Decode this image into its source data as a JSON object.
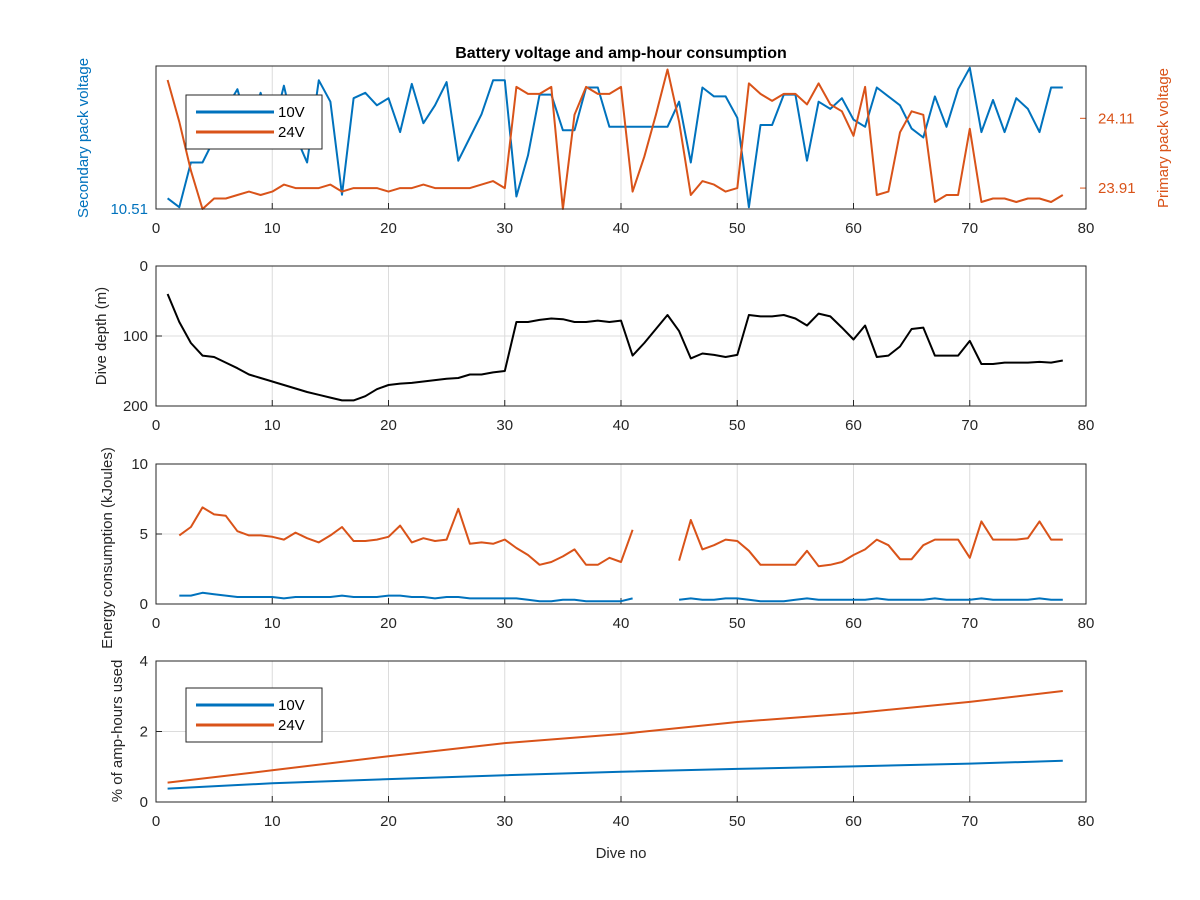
{
  "colors": {
    "s10v": "#0072BD",
    "s24v": "#D95319",
    "depth": "#000000",
    "grid": "#dcdcdc",
    "axis": "#262626"
  },
  "chart_data": [
    {
      "type": "line",
      "title": "Battery voltage and amp-hour consumption",
      "xlabel": "",
      "xlim": [
        0,
        80
      ],
      "xticks": [
        "0",
        "10",
        "20",
        "30",
        "40",
        "50",
        "60",
        "70",
        "80"
      ],
      "ylabel_left": "Secondary pack voltage",
      "ylabel_right": "Primary pack voltage",
      "ylim_left": [
        10.51,
        10.59
      ],
      "ylim_right": [
        23.85,
        24.26
      ],
      "yticks_left": [
        "10.51"
      ],
      "yticks_right": [
        "24.11",
        "23.91"
      ],
      "legend": {
        "position": "top-left",
        "entries": [
          "10V",
          "24V"
        ]
      },
      "series": [
        {
          "name": "10V",
          "axis": "left",
          "x": [
            1,
            2,
            3,
            4,
            5,
            6,
            7,
            8,
            9,
            10,
            11,
            12,
            13,
            14,
            15,
            16,
            17,
            18,
            19,
            20,
            21,
            22,
            23,
            24,
            25,
            26,
            27,
            28,
            29,
            30,
            31,
            32,
            33,
            34,
            35,
            36,
            37,
            38,
            39,
            40,
            41,
            42,
            43,
            44,
            45,
            46,
            47,
            48,
            49,
            50,
            51,
            52,
            53,
            54,
            55,
            56,
            57,
            58,
            59,
            60,
            61,
            62,
            63,
            64,
            65,
            66,
            67,
            68,
            69,
            70,
            71,
            72,
            73,
            74,
            75,
            76,
            77,
            78
          ],
          "y": [
            10.516,
            10.511,
            10.536,
            10.536,
            10.549,
            10.566,
            10.577,
            10.554,
            10.575,
            10.553,
            10.579,
            10.551,
            10.536,
            10.582,
            10.57,
            10.518,
            10.572,
            10.575,
            10.568,
            10.572,
            10.553,
            10.58,
            10.558,
            10.568,
            10.581,
            10.537,
            10.55,
            10.563,
            10.582,
            10.582,
            10.517,
            10.54,
            10.574,
            10.574,
            10.554,
            10.554,
            10.578,
            10.578,
            10.556,
            10.556,
            10.556,
            10.556,
            10.556,
            10.556,
            10.57,
            10.536,
            10.578,
            10.573,
            10.573,
            10.561,
            10.511,
            10.557,
            10.557,
            10.574,
            10.574,
            10.537,
            10.57,
            10.566,
            10.572,
            10.56,
            10.556,
            10.578,
            10.573,
            10.568,
            10.555,
            10.55,
            10.573,
            10.556,
            10.577,
            10.589,
            10.553,
            10.571,
            10.553,
            10.572,
            10.566,
            10.553,
            10.578,
            10.578
          ]
        },
        {
          "name": "24V",
          "axis": "right",
          "x": [
            1,
            2,
            3,
            4,
            5,
            6,
            7,
            8,
            9,
            10,
            11,
            12,
            13,
            14,
            15,
            16,
            17,
            18,
            19,
            20,
            21,
            22,
            23,
            24,
            25,
            26,
            27,
            28,
            29,
            30,
            31,
            32,
            33,
            34,
            35,
            36,
            37,
            38,
            39,
            40,
            41,
            42,
            43,
            44,
            45,
            46,
            47,
            48,
            49,
            50,
            51,
            52,
            53,
            54,
            55,
            56,
            57,
            58,
            59,
            60,
            61,
            62,
            63,
            64,
            65,
            66,
            67,
            68,
            69,
            70,
            71,
            72,
            73,
            74,
            75,
            76,
            77,
            78
          ],
          "y": [
            24.22,
            24.1,
            23.96,
            23.85,
            23.88,
            23.88,
            23.89,
            23.9,
            23.89,
            23.9,
            23.92,
            23.91,
            23.91,
            23.91,
            23.92,
            23.9,
            23.91,
            23.91,
            23.91,
            23.9,
            23.91,
            23.91,
            23.92,
            23.91,
            23.91,
            23.91,
            23.91,
            23.92,
            23.93,
            23.91,
            24.2,
            24.18,
            24.18,
            24.2,
            23.85,
            24.12,
            24.2,
            24.18,
            24.18,
            24.2,
            23.9,
            24.0,
            24.12,
            24.25,
            24.1,
            23.89,
            23.93,
            23.92,
            23.9,
            23.91,
            24.21,
            24.18,
            24.16,
            24.18,
            24.18,
            24.15,
            24.21,
            24.15,
            24.13,
            24.06,
            24.2,
            23.89,
            23.9,
            24.07,
            24.13,
            24.12,
            23.87,
            23.89,
            23.89,
            24.08,
            23.87,
            23.88,
            23.88,
            23.87,
            23.88,
            23.88,
            23.87,
            23.89
          ]
        }
      ]
    },
    {
      "type": "line",
      "xlabel": "",
      "ylabel": "Dive depth (m)",
      "xlim": [
        0,
        80
      ],
      "ylim": [
        200,
        0
      ],
      "y_reversed": true,
      "xticks": [
        "0",
        "10",
        "20",
        "30",
        "40",
        "50",
        "60",
        "70",
        "80"
      ],
      "yticks": [
        "0",
        "100",
        "200"
      ],
      "series": [
        {
          "x": [
            1,
            2,
            3,
            4,
            5,
            6,
            7,
            8,
            9,
            10,
            11,
            12,
            13,
            14,
            15,
            16,
            17,
            18,
            19,
            20,
            21,
            22,
            23,
            24,
            25,
            26,
            27,
            28,
            29,
            30,
            31,
            32,
            33,
            34,
            35,
            36,
            37,
            38,
            39,
            40,
            41,
            42,
            43,
            44,
            45,
            46,
            47,
            48,
            49,
            50,
            51,
            52,
            53,
            54,
            55,
            56,
            57,
            58,
            59,
            60,
            61,
            62,
            63,
            64,
            65,
            66,
            67,
            68,
            69,
            70,
            71,
            72,
            73,
            74,
            75,
            76,
            77,
            78
          ],
          "y": [
            40,
            80,
            110,
            128,
            130,
            138,
            146,
            155,
            160,
            165,
            170,
            175,
            180,
            184,
            188,
            192,
            192,
            186,
            176,
            170,
            168,
            167,
            165,
            163,
            161,
            160,
            155,
            155,
            152,
            150,
            80,
            80,
            77,
            75,
            76,
            80,
            80,
            78,
            80,
            78,
            128,
            110,
            90,
            70,
            93,
            132,
            125,
            127,
            130,
            127,
            70,
            72,
            72,
            70,
            75,
            85,
            68,
            72,
            88,
            105,
            85,
            130,
            128,
            115,
            90,
            88,
            128,
            128,
            128,
            107,
            140,
            140,
            138,
            138,
            138,
            137,
            138,
            135
          ]
        }
      ]
    },
    {
      "type": "line",
      "xlabel": "",
      "ylabel": "Energy consumption (kJoules)",
      "xlim": [
        0,
        80
      ],
      "ylim": [
        0,
        10
      ],
      "xticks": [
        "0",
        "10",
        "20",
        "30",
        "40",
        "50",
        "60",
        "70",
        "80"
      ],
      "yticks": [
        "0",
        "5",
        "10"
      ],
      "series": [
        {
          "name": "24V",
          "x": [
            2,
            3,
            4,
            5,
            6,
            7,
            8,
            9,
            10,
            11,
            12,
            13,
            14,
            15,
            16,
            17,
            18,
            19,
            20,
            21,
            22,
            23,
            24,
            25,
            26,
            27,
            28,
            29,
            30,
            31,
            32,
            33,
            34,
            35,
            36,
            37,
            38,
            39,
            40,
            41,
            null,
            45,
            46,
            47,
            48,
            49,
            50,
            51,
            52,
            53,
            54,
            55,
            56,
            57,
            58,
            59,
            60,
            61,
            62,
            63,
            64,
            65,
            66,
            67,
            68,
            69,
            70,
            71,
            72,
            73,
            74,
            75,
            76,
            77,
            78
          ],
          "y": [
            4.9,
            5.5,
            6.9,
            6.4,
            6.3,
            5.2,
            4.9,
            4.9,
            4.8,
            4.6,
            5.1,
            4.7,
            4.4,
            4.9,
            5.5,
            4.5,
            4.5,
            4.6,
            4.8,
            5.6,
            4.4,
            4.7,
            4.5,
            4.6,
            6.8,
            4.3,
            4.4,
            4.3,
            4.6,
            4.0,
            3.5,
            2.8,
            3.0,
            3.4,
            3.9,
            2.8,
            2.8,
            3.3,
            3.0,
            5.3,
            null,
            3.1,
            6.0,
            3.9,
            4.2,
            4.6,
            4.5,
            3.8,
            2.8,
            2.8,
            2.8,
            2.8,
            3.8,
            2.7,
            2.8,
            3.0,
            3.5,
            3.9,
            4.6,
            4.2,
            3.2,
            3.2,
            4.2,
            4.6,
            4.6,
            4.6,
            3.3,
            5.9,
            4.6,
            4.6,
            4.6,
            4.7,
            5.9,
            4.6,
            4.6
          ]
        },
        {
          "name": "10V",
          "x": [
            2,
            3,
            4,
            5,
            6,
            7,
            8,
            9,
            10,
            11,
            12,
            13,
            14,
            15,
            16,
            17,
            18,
            19,
            20,
            21,
            22,
            23,
            24,
            25,
            26,
            27,
            28,
            29,
            30,
            31,
            32,
            33,
            34,
            35,
            36,
            37,
            38,
            39,
            40,
            41,
            null,
            45,
            46,
            47,
            48,
            49,
            50,
            51,
            52,
            53,
            54,
            55,
            56,
            57,
            58,
            59,
            60,
            61,
            62,
            63,
            64,
            65,
            66,
            67,
            68,
            69,
            70,
            71,
            72,
            73,
            74,
            75,
            76,
            77,
            78
          ],
          "y": [
            0.6,
            0.6,
            0.8,
            0.7,
            0.6,
            0.5,
            0.5,
            0.5,
            0.5,
            0.4,
            0.5,
            0.5,
            0.5,
            0.5,
            0.6,
            0.5,
            0.5,
            0.5,
            0.6,
            0.6,
            0.5,
            0.5,
            0.4,
            0.5,
            0.5,
            0.4,
            0.4,
            0.4,
            0.4,
            0.4,
            0.3,
            0.2,
            0.2,
            0.3,
            0.3,
            0.2,
            0.2,
            0.2,
            0.2,
            0.4,
            null,
            0.3,
            0.4,
            0.3,
            0.3,
            0.4,
            0.4,
            0.3,
            0.2,
            0.2,
            0.2,
            0.3,
            0.4,
            0.3,
            0.3,
            0.3,
            0.3,
            0.3,
            0.4,
            0.3,
            0.3,
            0.3,
            0.3,
            0.4,
            0.3,
            0.3,
            0.3,
            0.4,
            0.3,
            0.3,
            0.3,
            0.3,
            0.4,
            0.3,
            0.3
          ]
        }
      ]
    },
    {
      "type": "line",
      "xlabel": "Dive no",
      "ylabel": "% of amp-hours used",
      "xlim": [
        0,
        80
      ],
      "ylim": [
        0,
        4
      ],
      "xticks": [
        "0",
        "10",
        "20",
        "30",
        "40",
        "50",
        "60",
        "70",
        "80"
      ],
      "yticks": [
        "0",
        "2",
        "4"
      ],
      "legend": {
        "position": "top-left",
        "entries": [
          "10V",
          "24V"
        ]
      },
      "series": [
        {
          "name": "10V",
          "x": [
            1,
            10,
            20,
            30,
            40,
            50,
            60,
            70,
            78
          ],
          "y": [
            0.38,
            0.53,
            0.65,
            0.76,
            0.86,
            0.94,
            1.01,
            1.09,
            1.17
          ]
        },
        {
          "name": "24V",
          "x": [
            1,
            10,
            20,
            30,
            40,
            50,
            60,
            70,
            78
          ],
          "y": [
            0.55,
            0.9,
            1.3,
            1.67,
            1.93,
            2.27,
            2.52,
            2.84,
            3.15
          ]
        }
      ]
    }
  ]
}
